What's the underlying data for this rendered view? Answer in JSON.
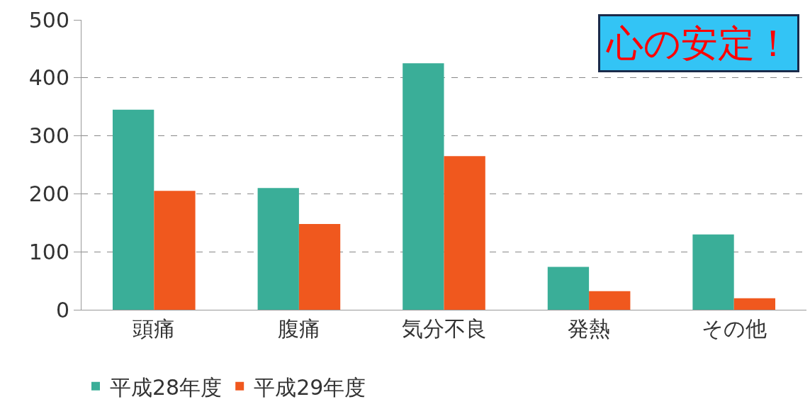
{
  "chart_data": {
    "type": "bar",
    "categories": [
      "頭痛",
      "腹痛",
      "気分不良",
      "発熱",
      "その他"
    ],
    "series": [
      {
        "name": "平成28年度",
        "color": "#3aae98",
        "values": [
          345,
          210,
          425,
          74,
          130
        ]
      },
      {
        "name": "平成29年度",
        "color": "#f0581e",
        "values": [
          205,
          148,
          265,
          32,
          20
        ]
      }
    ],
    "ylim": [
      0,
      500
    ],
    "yticks": [
      0,
      100,
      200,
      300,
      400,
      500
    ],
    "grid": "y",
    "legend": "bottom",
    "annotations": [
      "心の安定！"
    ]
  }
}
